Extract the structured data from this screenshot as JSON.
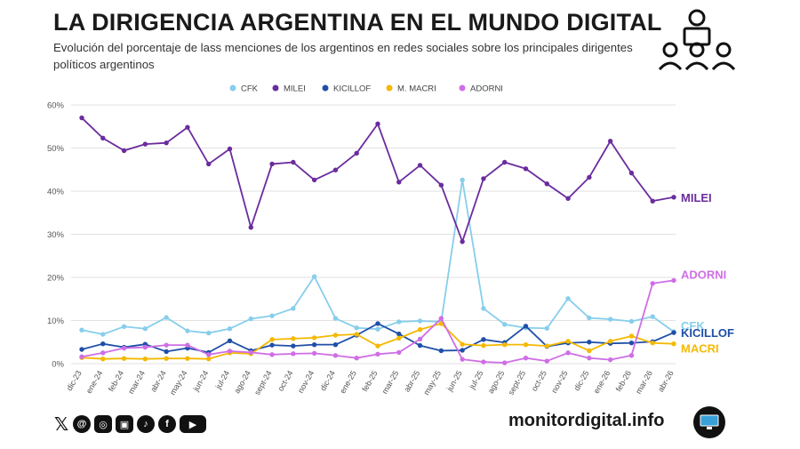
{
  "header": {
    "title": "LA DIRIGENCIA ARGENTINA EN EL MUNDO DIGITAL",
    "subtitle": "Evolución del porcentaje de lass menciones de los argentinos en redes sociales sobre los principales dirigentes políticos argentinos"
  },
  "footer": {
    "site": "monitordigital.info",
    "social_icons": [
      "x-icon",
      "threads-icon",
      "instagram-icon",
      "flickr-icon",
      "tiktok-icon",
      "facebook-icon",
      "youtube-icon"
    ]
  },
  "chart_data": {
    "type": "line",
    "categories": [
      "dic-23",
      "ene-24",
      "feb-24",
      "mar-24",
      "abr-24",
      "may-24",
      "jun-24",
      "jul-24",
      "ago-24",
      "sept-24",
      "oct-24",
      "nov-24",
      "dic-24",
      "ene-25",
      "feb-25",
      "mar-25",
      "abr-25",
      "may-25",
      "jun-25",
      "jul-25",
      "ago-25",
      "sept-25",
      "oct-25",
      "nov-25",
      "dic-25",
      "ene-26",
      "feb-26",
      "mar-26",
      "abr-26"
    ],
    "yticks": [
      "0%",
      "10%",
      "20%",
      "30%",
      "40%",
      "50%",
      "60%"
    ],
    "ylim": [
      0,
      60
    ],
    "grid": true,
    "legend_position": "top",
    "series": [
      {
        "name": "CFK",
        "color": "#87ceeb",
        "end_label": "CFK",
        "values": [
          7.8,
          6.8,
          8.6,
          8.1,
          10.7,
          7.6,
          7.1,
          8.1,
          10.4,
          11.1,
          12.8,
          20.2,
          10.5,
          8.3,
          8.0,
          9.7,
          9.9,
          9.7,
          42.6,
          12.8,
          9.1,
          8.3,
          8.2,
          15.1,
          10.6,
          10.3,
          9.8,
          10.9,
          7.4
        ]
      },
      {
        "name": "MILEI",
        "color": "#6a2c9e",
        "end_label": "MILEI",
        "values": [
          57.0,
          52.3,
          49.4,
          50.9,
          51.2,
          54.8,
          46.3,
          49.8,
          31.6,
          46.3,
          46.7,
          42.6,
          44.9,
          48.8,
          55.6,
          42.1,
          46.0,
          41.4,
          28.3,
          42.9,
          46.7,
          45.2,
          41.7,
          38.3,
          43.2,
          51.6,
          44.2,
          37.7,
          38.6
        ]
      },
      {
        "name": "KICILLOF",
        "color": "#1f4fa8",
        "end_label": "KICILLOF",
        "values": [
          3.3,
          4.6,
          3.8,
          4.5,
          2.8,
          3.6,
          2.6,
          5.3,
          3.0,
          4.3,
          4.1,
          4.4,
          4.4,
          6.6,
          9.3,
          6.9,
          4.2,
          3.0,
          3.1,
          5.6,
          4.9,
          8.7,
          4.0,
          4.8,
          5.0,
          4.7,
          4.8,
          5.1,
          7.2
        ]
      },
      {
        "name": "M. MACRI",
        "color": "#f5b800",
        "end_label": "MACRI",
        "values": [
          1.4,
          1.1,
          1.2,
          1.1,
          1.2,
          1.2,
          1.1,
          2.5,
          2.3,
          5.6,
          5.8,
          6.0,
          6.6,
          6.8,
          4.1,
          5.9,
          7.9,
          9.3,
          4.5,
          4.2,
          4.4,
          4.4,
          4.1,
          5.2,
          3.0,
          5.2,
          6.4,
          4.8,
          4.6
        ]
      },
      {
        "name": "ADORNI",
        "color": "#cf6ee6",
        "end_label": "ADORNI",
        "values": [
          1.6,
          2.5,
          3.6,
          3.8,
          4.3,
          4.3,
          2.1,
          2.9,
          2.6,
          2.1,
          2.3,
          2.4,
          1.9,
          1.3,
          2.2,
          2.6,
          5.7,
          10.5,
          1.0,
          0.4,
          0.2,
          1.3,
          0.6,
          2.5,
          1.3,
          0.9,
          1.9,
          18.6,
          19.3
        ]
      }
    ]
  }
}
